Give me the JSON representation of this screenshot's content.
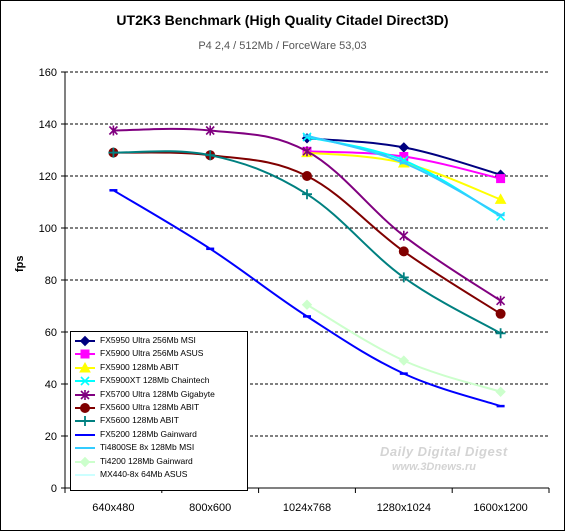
{
  "title": "UT2K3 Benchmark  (High Quality Citadel Direct3D)",
  "subtitle": "P4 2,4 / 512Mb / ForceWare 53,03",
  "watermark": {
    "line1": "Daily Digital Digest",
    "line2": "www.3Dnews.ru"
  },
  "chart_data": {
    "type": "line",
    "title": "UT2K3 Benchmark  (High Quality Citadel Direct3D)",
    "subtitle": "P4 2,4 / 512Mb / ForceWare 53,03",
    "xlabel": "",
    "ylabel": "fps",
    "categories": [
      "640x480",
      "800x600",
      "1024x768",
      "1280x1024",
      "1600x1200"
    ],
    "ylim": [
      0,
      160
    ],
    "yticks": [
      0,
      20,
      40,
      60,
      80,
      100,
      120,
      140,
      160
    ],
    "grid": "horizontal dashed",
    "legend_position": "bottom-left",
    "series": [
      {
        "name": "FX5950 Ultra 256Mb MSI",
        "values": [
          null,
          null,
          134.5,
          131,
          120.5
        ],
        "color": "#000080",
        "marker": "diamond"
      },
      {
        "name": "FX5900 Ultra 256Mb ASUS",
        "values": [
          null,
          null,
          129.5,
          127.5,
          119
        ],
        "color": "#FF00FF",
        "marker": "square"
      },
      {
        "name": "FX5900 128Mb ABIT",
        "values": [
          null,
          null,
          129,
          125,
          111
        ],
        "color": "#FFFF00",
        "marker": "triangle"
      },
      {
        "name": "FX5900XT 128Mb Chaintech",
        "values": [
          null,
          null,
          135,
          126,
          104.5
        ],
        "color": "#00FFFF",
        "marker": "x"
      },
      {
        "name": "FX5700 Ultra 128Mb Gigabyte",
        "values": [
          137.5,
          137.5,
          129.5,
          97,
          72
        ],
        "color": "#800080",
        "marker": "asterisk"
      },
      {
        "name": "FX5600 Ultra 128Mb ABIT",
        "values": [
          129,
          128,
          120,
          91,
          67
        ],
        "color": "#800000",
        "marker": "circle"
      },
      {
        "name": "FX5600 128Mb ABIT",
        "values": [
          129,
          128,
          113,
          81,
          59.5
        ],
        "color": "#008080",
        "marker": "plus"
      },
      {
        "name": "FX5200 128Mb Gainward",
        "values": [
          114.5,
          92,
          66,
          44,
          31.5
        ],
        "color": "#0000FF",
        "marker": "dash"
      },
      {
        "name": "Ti4800SE 8x 128Mb MSI",
        "values": [
          null,
          null,
          135.5,
          125,
          105
        ],
        "color": "#33CCFF",
        "marker": "dash"
      },
      {
        "name": "Ti4200 128Mb Gainward",
        "values": [
          null,
          null,
          70.5,
          49,
          37
        ],
        "color": "#CCFFCC",
        "marker": "diamond"
      },
      {
        "name": "MX440-8x 64Mb ASUS",
        "values": [
          null,
          null,
          null,
          null,
          null
        ],
        "color": "#CCFFFF",
        "marker": "none"
      }
    ]
  }
}
